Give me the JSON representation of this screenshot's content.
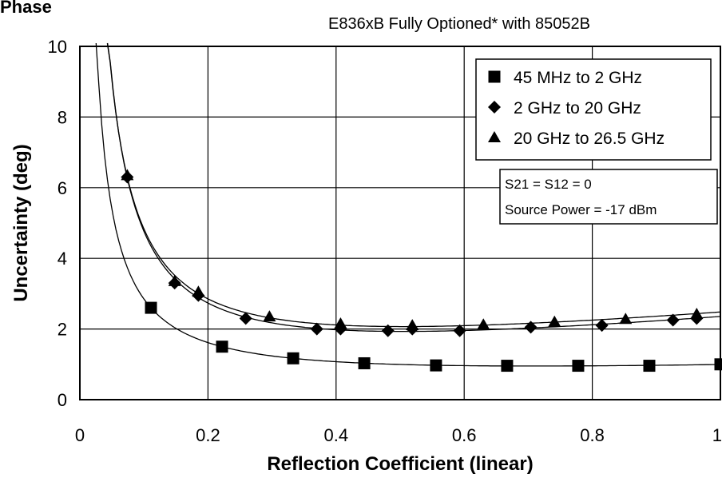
{
  "chart_data": {
    "type": "scatter",
    "title_left": "Phase",
    "title": "E836xB Fully Optioned* with 85052B",
    "xlabel": "Reflection Coefficient (linear)",
    "ylabel": "Uncertainty (deg)",
    "xlim": [
      0,
      1
    ],
    "ylim": [
      0,
      10
    ],
    "x_ticks": [
      "0",
      "0.2",
      "0.4",
      "0.6",
      "0.8",
      "1"
    ],
    "y_ticks": [
      "0",
      "2",
      "4",
      "6",
      "8",
      "10"
    ],
    "grid": true,
    "legend_position": "top-right",
    "annotation": [
      "S21 = S12 = 0",
      "Source Power = -17 dBm"
    ],
    "series": [
      {
        "name": "45 MHz to 2 GHz",
        "marker": "square",
        "x": [
          0.111,
          0.222,
          0.333,
          0.444,
          0.556,
          0.667,
          0.778,
          0.889,
          1.0
        ],
        "y": [
          2.6,
          1.5,
          1.17,
          1.03,
          0.97,
          0.96,
          0.96,
          0.96,
          1.0
        ]
      },
      {
        "name": "2 GHz to 20 GHz",
        "marker": "diamond",
        "x": [
          0.074,
          0.148,
          0.185,
          0.259,
          0.37,
          0.407,
          0.481,
          0.519,
          0.593,
          0.704,
          0.815,
          0.926,
          0.963
        ],
        "y": [
          6.3,
          3.3,
          2.95,
          2.3,
          2.0,
          2.0,
          1.95,
          2.0,
          1.95,
          2.05,
          2.1,
          2.25,
          2.3
        ]
      },
      {
        "name": "20 GHz to 26.5 GHz",
        "marker": "triangle",
        "x": [
          0.074,
          0.148,
          0.185,
          0.296,
          0.407,
          0.519,
          0.63,
          0.741,
          0.852,
          0.963
        ],
        "y": [
          6.35,
          3.35,
          3.05,
          2.35,
          2.15,
          2.1,
          2.12,
          2.2,
          2.28,
          2.42
        ]
      }
    ]
  }
}
